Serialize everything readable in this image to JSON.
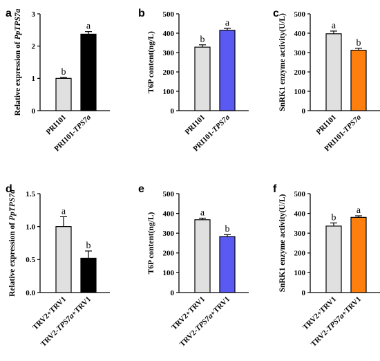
{
  "chart_data": [
    {
      "type": "bar",
      "panel": "a",
      "ylabel": "Relative expression of PpTPS7a",
      "ylabel_parts": [
        {
          "t": "Relative expression of ",
          "i": false
        },
        {
          "t": "PpTPS7a",
          "i": true
        }
      ],
      "ylim": [
        0,
        3
      ],
      "yticks": [
        "0",
        "1",
        "2",
        "3"
      ],
      "ytick_values": [
        0,
        1,
        2,
        3
      ],
      "categories": [
        "PRI101",
        "PRI101-TPS7a"
      ],
      "category_parts": [
        [
          {
            "t": "PRI101",
            "i": false
          }
        ],
        [
          {
            "t": "PRI101-",
            "i": false
          },
          {
            "t": "TPS7a",
            "i": true
          }
        ]
      ],
      "values": [
        1.0,
        2.37
      ],
      "errors": [
        0.03,
        0.08
      ],
      "letters": [
        "b",
        "a"
      ],
      "colors": [
        "#e0e0e0",
        "#000000"
      ]
    },
    {
      "type": "bar",
      "panel": "b",
      "ylabel": "T6P content(ng/L)",
      "ylabel_parts": [
        {
          "t": "T6P content(ng/L)",
          "i": false
        }
      ],
      "ylim": [
        0,
        500
      ],
      "yticks": [
        "0",
        "100",
        "200",
        "300",
        "400",
        "500"
      ],
      "ytick_values": [
        0,
        100,
        200,
        300,
        400,
        500
      ],
      "categories": [
        "PRI101",
        "PRI101-TPS7a"
      ],
      "category_parts": [
        [
          {
            "t": "PRI101",
            "i": false
          }
        ],
        [
          {
            "t": "PRI101-",
            "i": false
          },
          {
            "t": "TPS7a",
            "i": true
          }
        ]
      ],
      "values": [
        328,
        415
      ],
      "errors": [
        12,
        10
      ],
      "letters": [
        "b",
        "a"
      ],
      "colors": [
        "#e0e0e0",
        "#5a5af2"
      ]
    },
    {
      "type": "bar",
      "panel": "c",
      "ylabel": "SnRK1 enzyme activity(U/L)",
      "ylabel_parts": [
        {
          "t": "SnRK1 enzyme activity(U/L)",
          "i": false
        }
      ],
      "ylim": [
        0,
        500
      ],
      "yticks": [
        "0",
        "100",
        "200",
        "300",
        "400",
        "500"
      ],
      "ytick_values": [
        0,
        100,
        200,
        300,
        400,
        500
      ],
      "categories": [
        "PRI101",
        "PRI101-TPS7a"
      ],
      "category_parts": [
        [
          {
            "t": "PRI101",
            "i": false
          }
        ],
        [
          {
            "t": "PRI101-",
            "i": false
          },
          {
            "t": "TPS7a",
            "i": true
          }
        ]
      ],
      "values": [
        397,
        312
      ],
      "errors": [
        14,
        10
      ],
      "letters": [
        "a",
        "b"
      ],
      "colors": [
        "#e0e0e0",
        "#ff7f0e"
      ]
    },
    {
      "type": "bar",
      "panel": "d",
      "ylabel": "Relative expression of PpTPS7a",
      "ylabel_parts": [
        {
          "t": "Relative expression of ",
          "i": false
        },
        {
          "t": "PpTPS7a",
          "i": true
        }
      ],
      "ylim": [
        0,
        1.5
      ],
      "yticks": [
        "0.0",
        "0.5",
        "1.0",
        "1.5"
      ],
      "ytick_values": [
        0,
        0.5,
        1.0,
        1.5
      ],
      "categories": [
        "TRV2+TRV1",
        "TRV2-TPS7a+TRV1"
      ],
      "category_parts": [
        [
          {
            "t": "TRV2+TRV1",
            "i": false
          }
        ],
        [
          {
            "t": "TRV2-",
            "i": false
          },
          {
            "t": "TPS7a",
            "i": true
          },
          {
            "t": "+TRV1",
            "i": false
          }
        ]
      ],
      "values": [
        1.0,
        0.52
      ],
      "errors": [
        0.15,
        0.11
      ],
      "letters": [
        "a",
        "b"
      ],
      "colors": [
        "#e0e0e0",
        "#000000"
      ]
    },
    {
      "type": "bar",
      "panel": "e",
      "ylabel": "T6P content(ng/L)",
      "ylabel_parts": [
        {
          "t": "T6P content(ng/L)",
          "i": false
        }
      ],
      "ylim": [
        0,
        500
      ],
      "yticks": [
        "0",
        "100",
        "200",
        "300",
        "400",
        "500"
      ],
      "ytick_values": [
        0,
        100,
        200,
        300,
        400,
        500
      ],
      "categories": [
        "TRV2+TRV1",
        "TRV2-TPS7a+TRV1"
      ],
      "category_parts": [
        [
          {
            "t": "TRV2+TRV1",
            "i": false
          }
        ],
        [
          {
            "t": "TRV2-",
            "i": false
          },
          {
            "t": "TPS7a",
            "i": true
          },
          {
            "t": "+TRV1",
            "i": false
          }
        ]
      ],
      "values": [
        368,
        283
      ],
      "errors": [
        8,
        10
      ],
      "letters": [
        "a",
        "b"
      ],
      "colors": [
        "#e0e0e0",
        "#5a5af2"
      ]
    },
    {
      "type": "bar",
      "panel": "f",
      "ylabel": "SnRK1 enzyme activity(U/L)",
      "ylabel_parts": [
        {
          "t": "SnRK1 enzyme activity(U/L)",
          "i": false
        }
      ],
      "ylim": [
        0,
        500
      ],
      "yticks": [
        "0",
        "100",
        "200",
        "300",
        "400",
        "500"
      ],
      "ytick_values": [
        0,
        100,
        200,
        300,
        400,
        500
      ],
      "categories": [
        "TRV2+TRV1",
        "TRV2-TPS7a+TRV1"
      ],
      "category_parts": [
        [
          {
            "t": "TRV2+TRV1",
            "i": false
          }
        ],
        [
          {
            "t": "TRV2-",
            "i": false
          },
          {
            "t": "TPS7a",
            "i": true
          },
          {
            "t": "+TRV1",
            "i": false
          }
        ]
      ],
      "values": [
        336,
        380
      ],
      "errors": [
        16,
        8
      ],
      "letters": [
        "b",
        "a"
      ],
      "colors": [
        "#e0e0e0",
        "#ff7f0e"
      ]
    }
  ]
}
